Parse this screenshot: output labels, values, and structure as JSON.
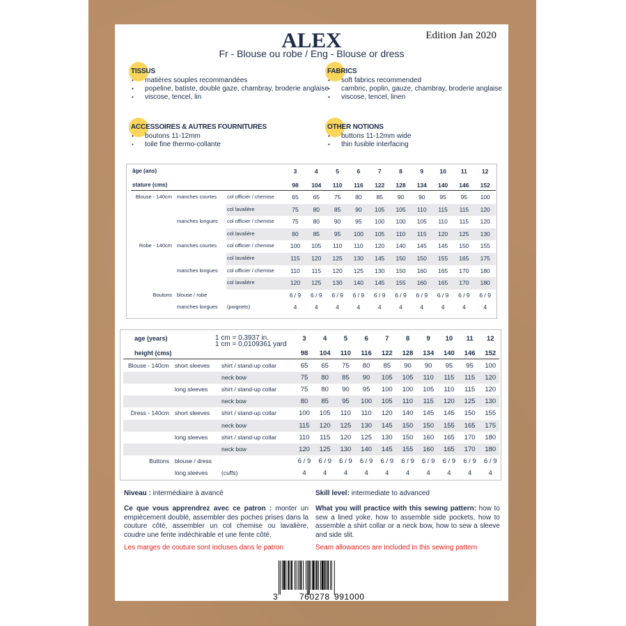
{
  "header": {
    "title": "ALEX",
    "edition": "Edition Jan 2020",
    "subtitle": "Fr - Blouse ou robe / Eng - Blouse or dress"
  },
  "sections": {
    "tissus": {
      "heading": "TISSUS",
      "items": [
        "matières souples recommandées",
        "popeline, batiste, double gaze, chambray, broderie anglaise",
        "viscose, tencel, lin"
      ]
    },
    "fabrics": {
      "heading": "FABRICS",
      "items": [
        "soft fabrics recommended",
        "cambric, poplin, gauze, chambray, broderie anglaise",
        "viscose, tencel, linen"
      ]
    },
    "accessoires": {
      "heading": "ACCESSOIRES & AUTRES FOURNITURES",
      "items": [
        "boutons 11-12mm",
        "toile fine thermo-collante"
      ]
    },
    "notions": {
      "heading": "OTHER NOTIONS",
      "items": [
        "buttons 11-12mm wide",
        "thin fusible interfacing"
      ]
    }
  },
  "colors": {
    "navy": "#1b2a48",
    "yellow": "#f9d55b",
    "red": "#e3201b",
    "kraft": "#b78c66",
    "band": "#e8e8ea"
  },
  "table_fr": {
    "age_label": "âge (ans)",
    "height_label": "stature (cms)",
    "ages": [
      "3",
      "4",
      "5",
      "6",
      "7",
      "8",
      "9",
      "10",
      "11",
      "12"
    ],
    "heights": [
      "98",
      "104",
      "110",
      "116",
      "122",
      "128",
      "134",
      "140",
      "146",
      "152"
    ],
    "rows": [
      {
        "c1": "Blouse - 140cm",
        "c2": "manches courtes",
        "c3": "col officier / chemise",
        "values": [
          "65",
          "65",
          "75",
          "80",
          "85",
          "90",
          "90",
          "95",
          "95",
          "100"
        ]
      },
      {
        "c1": "",
        "c2": "",
        "c3": "col lavalière",
        "values": [
          "75",
          "80",
          "85",
          "90",
          "105",
          "105",
          "110",
          "115",
          "115",
          "120"
        ]
      },
      {
        "c1": "",
        "c2": "manches longues",
        "c3": "col officier / chemise",
        "values": [
          "75",
          "80",
          "90",
          "95",
          "100",
          "100",
          "105",
          "110",
          "115",
          "120"
        ]
      },
      {
        "c1": "",
        "c2": "",
        "c3": "col lavalière",
        "values": [
          "80",
          "85",
          "95",
          "100",
          "105",
          "110",
          "115",
          "120",
          "125",
          "130"
        ]
      },
      {
        "c1": "Robe - 140cm",
        "c2": "manches courtes",
        "c3": "col officier / chemise",
        "values": [
          "100",
          "105",
          "110",
          "110",
          "120",
          "140",
          "145",
          "145",
          "150",
          "155"
        ]
      },
      {
        "c1": "",
        "c2": "",
        "c3": "col lavalière",
        "values": [
          "115",
          "120",
          "125",
          "130",
          "145",
          "150",
          "150",
          "155",
          "165",
          "175"
        ]
      },
      {
        "c1": "",
        "c2": "manches longues",
        "c3": "col officier / chemise",
        "values": [
          "110",
          "115",
          "120",
          "125",
          "130",
          "150",
          "160",
          "165",
          "170",
          "180"
        ]
      },
      {
        "c1": "",
        "c2": "",
        "c3": "col lavalière",
        "values": [
          "120",
          "125",
          "130",
          "140",
          "145",
          "155",
          "160",
          "165",
          "170",
          "180"
        ]
      },
      {
        "c1": "Boutons",
        "c2": "blouse / robe",
        "c3": "",
        "values": [
          "6 / 9",
          "6 / 9",
          "6 / 9",
          "6 / 9",
          "6 / 9",
          "6 / 9",
          "6 / 9",
          "6 / 9",
          "6 / 9",
          "6 / 9"
        ]
      },
      {
        "c1": "",
        "c2": "manches longues",
        "c3": "(poignets)",
        "values": [
          "4",
          "4",
          "4",
          "4",
          "4",
          "4",
          "4",
          "4",
          "4",
          "4"
        ]
      }
    ]
  },
  "table_en": {
    "age_label": "age (years)",
    "height_label": "height (cms)",
    "conversion": [
      "1 cm = 0,3937 in.",
      "1 cm = 0,0109361 yard"
    ],
    "ages": [
      "3",
      "4",
      "5",
      "6",
      "7",
      "8",
      "9",
      "10",
      "11",
      "12"
    ],
    "heights": [
      "98",
      "104",
      "110",
      "116",
      "122",
      "128",
      "134",
      "140",
      "146",
      "152"
    ],
    "rows": [
      {
        "c1": "Blouse - 140cm",
        "c2": "short sleeves",
        "c3": "shirt / stand-up collar",
        "values": [
          "65",
          "65",
          "75",
          "80",
          "85",
          "90",
          "90",
          "95",
          "95",
          "100"
        ]
      },
      {
        "c1": "",
        "c2": "",
        "c3": "neck bow",
        "values": [
          "75",
          "80",
          "85",
          "90",
          "105",
          "105",
          "110",
          "115",
          "115",
          "120"
        ]
      },
      {
        "c1": "",
        "c2": "long sleeves",
        "c3": "shirt / stand-up collar",
        "values": [
          "75",
          "80",
          "90",
          "95",
          "100",
          "100",
          "105",
          "110",
          "115",
          "120"
        ]
      },
      {
        "c1": "",
        "c2": "",
        "c3": "neck bow",
        "values": [
          "80",
          "85",
          "95",
          "100",
          "105",
          "110",
          "115",
          "120",
          "125",
          "130"
        ]
      },
      {
        "c1": "Dress - 140cm",
        "c2": "short sleeves",
        "c3": "shirt / stand-up collar",
        "values": [
          "100",
          "105",
          "110",
          "110",
          "120",
          "140",
          "145",
          "145",
          "150",
          "155"
        ]
      },
      {
        "c1": "",
        "c2": "",
        "c3": "neck bow",
        "values": [
          "115",
          "120",
          "125",
          "130",
          "145",
          "150",
          "150",
          "155",
          "165",
          "175"
        ]
      },
      {
        "c1": "",
        "c2": "long sleeves",
        "c3": "shirt / stand-up collar",
        "values": [
          "110",
          "115",
          "120",
          "125",
          "130",
          "150",
          "160",
          "165",
          "170",
          "180"
        ]
      },
      {
        "c1": "",
        "c2": "",
        "c3": "neck bow",
        "values": [
          "120",
          "125",
          "130",
          "140",
          "145",
          "155",
          "160",
          "165",
          "170",
          "180"
        ]
      },
      {
        "c1": "Buttons",
        "c2": "blouse / dress",
        "c3": "",
        "values": [
          "6 / 9",
          "6 / 9",
          "6 / 9",
          "6 / 9",
          "6 / 9",
          "6 / 9",
          "6 / 9",
          "6 / 9",
          "6 / 9",
          "6 / 9"
        ]
      },
      {
        "c1": "",
        "c2": "long sleeves",
        "c3": "(cuffs)",
        "values": [
          "4",
          "4",
          "4",
          "4",
          "4",
          "4",
          "4",
          "4",
          "4",
          "4"
        ]
      }
    ]
  },
  "footer": {
    "fr": {
      "level_label": "Niveau :",
      "level": " intermédiaire à avancé",
      "learn_label": "Ce que vous apprendrez avec ce patron :",
      "learn": " monter un empiècement doublé, assembler des poches prises dans la couture côté, assembler un col chemise ou lavalière, coudre une fente indéchirable et une fente côté.",
      "seam": "Les marges de couture sont incluses dans le patron"
    },
    "en": {
      "level_label": "Skill level:",
      "level": " intermediate to advanced",
      "learn_label": "What you will practice with this sewing pattern:",
      "learn": " how to sew a lined yoke, how to assemble side pockets, how to assemble a shirt collar or a neck bow, how to sew a sleeve and side slit.",
      "seam": "Seam allowances are included in this sewing pattern"
    }
  },
  "barcode": {
    "digits": [
      "3",
      "760278",
      "991000"
    ]
  }
}
